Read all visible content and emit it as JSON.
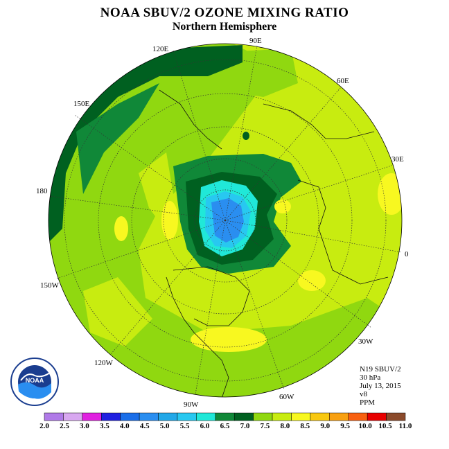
{
  "title": "NOAA SBUV/2 OZONE MIXING RATIO",
  "subtitle": "Northern Hemisphere",
  "longitude_labels": {
    "lon_90e": "90E",
    "lon_120e": "120E",
    "lon_60e": "60E",
    "lon_150e": "150E",
    "lon_30e": "30E",
    "lon_180": "180",
    "lon_0": "0",
    "lon_150w": "150W",
    "lon_30w": "30W",
    "lon_120w": "120W",
    "lon_60w": "60W",
    "lon_90w": "90W"
  },
  "info": {
    "instrument": "N19 SBUV/2",
    "level": "30 hPa",
    "date": "July 13, 2015",
    "version": "v8",
    "units": "PPM"
  },
  "logo_text": "NOAA",
  "colorbar": {
    "labels": [
      "2.0",
      "2.5",
      "3.0",
      "3.5",
      "4.0",
      "4.5",
      "5.0",
      "5.5",
      "6.0",
      "6.5",
      "7.0",
      "7.5",
      "8.0",
      "8.5",
      "9.0",
      "9.5",
      "10.0",
      "10.5",
      "11.0"
    ],
    "colors": [
      "#b07ae8",
      "#d8a8f0",
      "#e020e0",
      "#2020e0",
      "#1a6ee8",
      "#2a8ef0",
      "#22a8e8",
      "#28c8f0",
      "#20e8d8",
      "#108838",
      "#006020",
      "#90d810",
      "#c8ec10",
      "#f8f820",
      "#f8c810",
      "#f8a010",
      "#f86010",
      "#e80000",
      "#8b4a2b"
    ]
  },
  "chart_data": {
    "type": "heatmap",
    "projection": "north polar stereographic",
    "variable": "ozone mixing ratio",
    "units": "PPM",
    "level": "30 hPa",
    "date": "July 13, 2015",
    "range": [
      2.0,
      11.0
    ],
    "contour_interval": 0.5,
    "minimum_region": "over the North Pole / Arctic Ocean, about 5.0-5.5",
    "maximum_regions": "8.5-9.0 patches over the Atlantic, Caribbean, Pacific and eastern Europe",
    "outer_region_values": "7.5-8.0 over most mid-latitudes, 7.0 band over the western Pacific"
  }
}
